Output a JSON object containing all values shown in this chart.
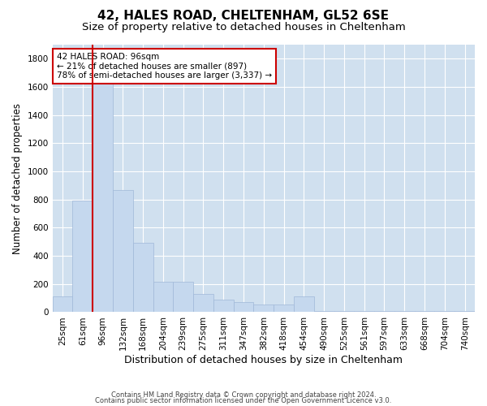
{
  "title1": "42, HALES ROAD, CHELTENHAM, GL52 6SE",
  "title2": "Size of property relative to detached houses in Cheltenham",
  "xlabel": "Distribution of detached houses by size in Cheltenham",
  "ylabel": "Number of detached properties",
  "categories": [
    "25sqm",
    "61sqm",
    "96sqm",
    "132sqm",
    "168sqm",
    "204sqm",
    "239sqm",
    "275sqm",
    "311sqm",
    "347sqm",
    "382sqm",
    "418sqm",
    "454sqm",
    "490sqm",
    "525sqm",
    "561sqm",
    "597sqm",
    "633sqm",
    "668sqm",
    "704sqm",
    "740sqm"
  ],
  "values": [
    110,
    790,
    1630,
    870,
    490,
    215,
    215,
    130,
    90,
    70,
    55,
    55,
    110,
    10,
    10,
    10,
    10,
    10,
    10,
    10,
    10
  ],
  "bar_color": "#c5d8ee",
  "bar_edge_color": "#a0b8d8",
  "vline_color": "#cc0000",
  "vline_bar_index": 2,
  "annotation_text": "42 HALES ROAD: 96sqm\n← 21% of detached houses are smaller (897)\n78% of semi-detached houses are larger (3,337) →",
  "annotation_box_facecolor": "#ffffff",
  "annotation_box_edgecolor": "#cc0000",
  "ylim": [
    0,
    1900
  ],
  "yticks": [
    0,
    200,
    400,
    600,
    800,
    1000,
    1200,
    1400,
    1600,
    1800
  ],
  "footer1": "Contains HM Land Registry data © Crown copyright and database right 2024.",
  "footer2": "Contains public sector information licensed under the Open Government Licence v3.0.",
  "bg_color": "#ffffff",
  "plot_bg_color": "#d0e0ef",
  "grid_color": "#ffffff",
  "title1_fontsize": 11,
  "title2_fontsize": 9.5,
  "tick_fontsize": 7.5,
  "ylabel_fontsize": 8.5,
  "xlabel_fontsize": 9,
  "annotation_fontsize": 7.5,
  "footer_fontsize": 6.0
}
